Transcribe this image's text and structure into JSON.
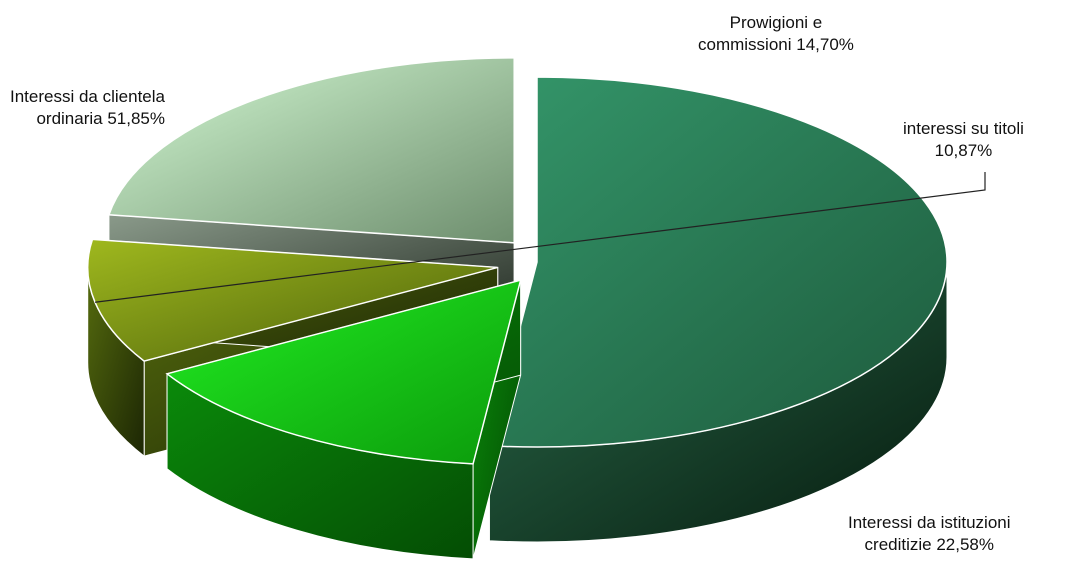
{
  "chart_data": {
    "type": "pie",
    "title": "",
    "slices": [
      {
        "label_line1": "Interessi da clientela",
        "label_line2": "ordinaria 51,85%",
        "value": 51.85,
        "color": "#2e8b62"
      },
      {
        "label_line1": "Prowigioni e",
        "label_line2": "commissioni 14,70%",
        "value": 14.7,
        "color": "#22dd22"
      },
      {
        "label_line1": "interessi su titoli",
        "label_line2": "10,87%",
        "value": 10.87,
        "color": "#8aa61c"
      },
      {
        "label_line1": "Interessi da istituzioni",
        "label_line2": "creditizie 22,58%",
        "value": 22.58,
        "color": "#c8f0c8"
      }
    ],
    "legend": "none",
    "style": "3d-exploded"
  }
}
